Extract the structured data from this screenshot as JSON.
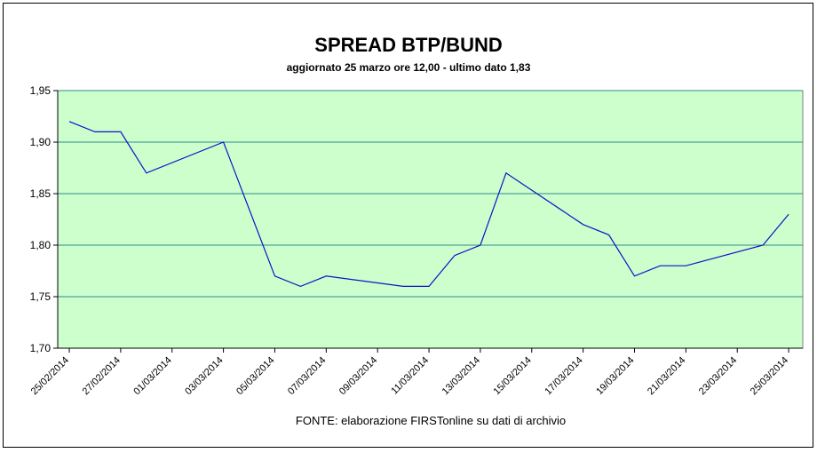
{
  "chart_data": {
    "type": "line",
    "title": "SPREAD BTP/BUND",
    "subtitle": "aggiornato 25 marzo ore 12,00 - ultimo dato 1,83",
    "x_label": "FONTE: elaborazione FIRSTonline su dati di archivio",
    "x": [
      "25/02/2014",
      "26/02/2014",
      "27/02/2014",
      "28/02/2014",
      "03/03/2014",
      "05/03/2014",
      "06/03/2014",
      "07/03/2014",
      "10/03/2014",
      "11/03/2014",
      "12/03/2014",
      "13/03/2014",
      "14/03/2014",
      "17/03/2014",
      "18/03/2014",
      "19/03/2014",
      "20/03/2014",
      "21/03/2014",
      "24/03/2014",
      "25/03/2014"
    ],
    "series": [
      {
        "color": "#1010c8",
        "values": [
          1.92,
          1.91,
          1.91,
          1.87,
          1.9,
          1.77,
          1.76,
          1.77,
          1.76,
          1.76,
          1.79,
          1.8,
          1.87,
          1.82,
          1.81,
          1.77,
          1.78,
          1.78,
          1.8,
          1.83
        ]
      }
    ],
    "xlim": [
      "25/02/2014",
      "25/03/2014"
    ],
    "xticks": [
      "25/02/2014",
      "27/02/2014",
      "01/03/2014",
      "03/03/2014",
      "05/03/2014",
      "07/03/2014",
      "09/03/2014",
      "11/03/2014",
      "13/03/2014",
      "15/03/2014",
      "17/03/2014",
      "19/03/2014",
      "21/03/2014",
      "23/03/2014",
      "25/03/2014"
    ],
    "ylim": [
      1.7,
      1.95
    ],
    "yticks": [
      {
        "value": 1.7,
        "label": "1,70"
      },
      {
        "value": 1.75,
        "label": "1,75"
      },
      {
        "value": 1.8,
        "label": "1,80"
      },
      {
        "value": 1.85,
        "label": "1,85"
      },
      {
        "value": 1.9,
        "label": "1,90"
      },
      {
        "value": 1.95,
        "label": "1,95"
      }
    ],
    "grid": true,
    "plot_background": "#ccffcc",
    "grid_color": "#2e8b8b"
  }
}
